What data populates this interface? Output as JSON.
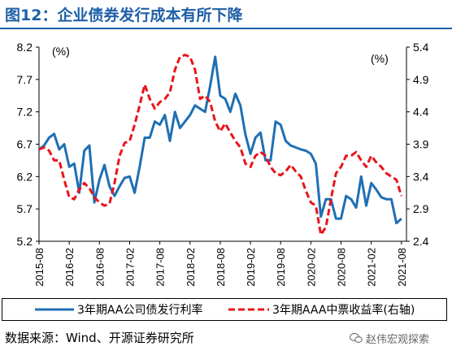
{
  "header": {
    "title": "图12：企业债券发行成本有所下降"
  },
  "footer": {
    "source": "数据来源：Wind、开源证券研究所",
    "watermark": "赵伟宏观探索"
  },
  "colors": {
    "title": "#1f5fa8",
    "series_left": "#1f6fb4",
    "series_right": "#e8141c"
  },
  "chart_data": {
    "type": "line",
    "title": "",
    "y_left": {
      "unit_label": "(%)",
      "range": [
        5.2,
        8.2
      ],
      "ticks": [
        "5.2",
        "5.7",
        "6.2",
        "6.7",
        "7.2",
        "7.7",
        "8.2"
      ]
    },
    "y_right": {
      "unit_label": "(%)",
      "range": [
        2.4,
        5.4
      ],
      "ticks": [
        "2.4",
        "2.9",
        "3.4",
        "3.9",
        "4.4",
        "4.9",
        "5.4"
      ]
    },
    "x_range": [
      "2015-08",
      "2021-09"
    ],
    "x_ticks": [
      "2015-08",
      "2016-02",
      "2016-08",
      "2017-02",
      "2017-08",
      "2018-02",
      "2018-08",
      "2019-02",
      "2019-08",
      "2020-02",
      "2020-08",
      "2021-02",
      "2021-08"
    ],
    "legend_position": "bottom",
    "grid": false,
    "series": [
      {
        "name": "3年期AA公司债发行利率",
        "axis": "left",
        "style": "solid",
        "points": [
          [
            "2015-08",
            6.62
          ],
          [
            "2015-09",
            6.68
          ],
          [
            "2015-10",
            6.8
          ],
          [
            "2015-11",
            6.86
          ],
          [
            "2015-12",
            6.62
          ],
          [
            "2016-01",
            6.7
          ],
          [
            "2016-02",
            6.35
          ],
          [
            "2016-03",
            6.4
          ],
          [
            "2016-04",
            5.95
          ],
          [
            "2016-05",
            6.6
          ],
          [
            "2016-06",
            6.68
          ],
          [
            "2016-07",
            5.8
          ],
          [
            "2016-08",
            6.15
          ],
          [
            "2016-09",
            6.38
          ],
          [
            "2016-10",
            6.05
          ],
          [
            "2016-11",
            5.9
          ],
          [
            "2016-12",
            6.05
          ],
          [
            "2017-01",
            6.18
          ],
          [
            "2017-02",
            6.2
          ],
          [
            "2017-03",
            5.95
          ],
          [
            "2017-04",
            6.35
          ],
          [
            "2017-05",
            6.8
          ],
          [
            "2017-06",
            6.8
          ],
          [
            "2017-07",
            7.05
          ],
          [
            "2017-08",
            7.0
          ],
          [
            "2017-09",
            7.15
          ],
          [
            "2017-10",
            6.75
          ],
          [
            "2017-11",
            7.2
          ],
          [
            "2017-12",
            6.95
          ],
          [
            "2018-01",
            7.05
          ],
          [
            "2018-02",
            7.15
          ],
          [
            "2018-03",
            7.3
          ],
          [
            "2018-04",
            7.25
          ],
          [
            "2018-05",
            7.2
          ],
          [
            "2018-06",
            7.6
          ],
          [
            "2018-07",
            8.05
          ],
          [
            "2018-08",
            7.45
          ],
          [
            "2018-09",
            7.4
          ],
          [
            "2018-10",
            7.2
          ],
          [
            "2018-11",
            7.48
          ],
          [
            "2018-12",
            7.3
          ],
          [
            "2019-01",
            6.85
          ],
          [
            "2019-02",
            6.55
          ],
          [
            "2019-03",
            6.8
          ],
          [
            "2019-04",
            6.88
          ],
          [
            "2019-05",
            6.45
          ],
          [
            "2019-06",
            6.45
          ],
          [
            "2019-07",
            7.05
          ],
          [
            "2019-08",
            7.0
          ],
          [
            "2019-09",
            6.75
          ],
          [
            "2019-10",
            6.68
          ],
          [
            "2019-11",
            6.65
          ],
          [
            "2019-12",
            6.62
          ],
          [
            "2020-01",
            6.6
          ],
          [
            "2020-02",
            6.55
          ],
          [
            "2020-03",
            6.4
          ],
          [
            "2020-04",
            5.58
          ],
          [
            "2020-05",
            5.85
          ],
          [
            "2020-06",
            5.85
          ],
          [
            "2020-07",
            5.55
          ],
          [
            "2020-08",
            5.55
          ],
          [
            "2020-09",
            5.9
          ],
          [
            "2020-10",
            5.85
          ],
          [
            "2020-11",
            5.72
          ],
          [
            "2020-12",
            6.2
          ],
          [
            "2021-01",
            5.75
          ],
          [
            "2021-02",
            6.1
          ],
          [
            "2021-03",
            6.0
          ],
          [
            "2021-04",
            5.88
          ],
          [
            "2021-05",
            5.85
          ],
          [
            "2021-06",
            5.85
          ],
          [
            "2021-07",
            5.48
          ],
          [
            "2021-08",
            5.55
          ]
        ]
      },
      {
        "name": "3年期AAA中票收益率(右轴)",
        "axis": "right",
        "style": "dashed",
        "points": [
          [
            "2015-08",
            3.82
          ],
          [
            "2015-09",
            3.85
          ],
          [
            "2015-10",
            3.8
          ],
          [
            "2015-11",
            3.65
          ],
          [
            "2015-12",
            3.65
          ],
          [
            "2016-01",
            3.35
          ],
          [
            "2016-02",
            3.08
          ],
          [
            "2016-03",
            3.05
          ],
          [
            "2016-04",
            3.2
          ],
          [
            "2016-05",
            3.3
          ],
          [
            "2016-06",
            3.22
          ],
          [
            "2016-07",
            3.08
          ],
          [
            "2016-08",
            3.0
          ],
          [
            "2016-09",
            2.95
          ],
          [
            "2016-10",
            2.98
          ],
          [
            "2016-11",
            3.3
          ],
          [
            "2016-12",
            3.72
          ],
          [
            "2017-01",
            3.92
          ],
          [
            "2017-02",
            3.95
          ],
          [
            "2017-03",
            4.2
          ],
          [
            "2017-04",
            4.5
          ],
          [
            "2017-05",
            4.82
          ],
          [
            "2017-06",
            4.6
          ],
          [
            "2017-07",
            4.45
          ],
          [
            "2017-08",
            4.55
          ],
          [
            "2017-09",
            4.6
          ],
          [
            "2017-10",
            4.7
          ],
          [
            "2017-11",
            5.05
          ],
          [
            "2017-12",
            5.25
          ],
          [
            "2018-01",
            5.28
          ],
          [
            "2018-02",
            5.25
          ],
          [
            "2018-03",
            5.05
          ],
          [
            "2018-04",
            4.6
          ],
          [
            "2018-05",
            4.65
          ],
          [
            "2018-06",
            4.55
          ],
          [
            "2018-07",
            4.25
          ],
          [
            "2018-08",
            4.1
          ],
          [
            "2018-09",
            4.22
          ],
          [
            "2018-10",
            4.08
          ],
          [
            "2018-11",
            3.95
          ],
          [
            "2018-12",
            3.85
          ],
          [
            "2019-01",
            3.6
          ],
          [
            "2019-02",
            3.55
          ],
          [
            "2019-03",
            3.72
          ],
          [
            "2019-04",
            3.78
          ],
          [
            "2019-05",
            3.72
          ],
          [
            "2019-06",
            3.55
          ],
          [
            "2019-07",
            3.45
          ],
          [
            "2019-08",
            3.42
          ],
          [
            "2019-09",
            3.48
          ],
          [
            "2019-10",
            3.58
          ],
          [
            "2019-11",
            3.48
          ],
          [
            "2019-12",
            3.4
          ],
          [
            "2020-01",
            3.18
          ],
          [
            "2020-02",
            3.0
          ],
          [
            "2020-03",
            2.95
          ],
          [
            "2020-04",
            2.5
          ],
          [
            "2020-05",
            2.62
          ],
          [
            "2020-06",
            3.05
          ],
          [
            "2020-07",
            3.45
          ],
          [
            "2020-08",
            3.55
          ],
          [
            "2020-09",
            3.72
          ],
          [
            "2020-10",
            3.72
          ],
          [
            "2020-11",
            3.78
          ],
          [
            "2020-12",
            3.65
          ],
          [
            "2021-01",
            3.55
          ],
          [
            "2021-02",
            3.72
          ],
          [
            "2021-03",
            3.62
          ],
          [
            "2021-04",
            3.55
          ],
          [
            "2021-05",
            3.45
          ],
          [
            "2021-06",
            3.4
          ],
          [
            "2021-07",
            3.35
          ],
          [
            "2021-08",
            3.1
          ]
        ]
      }
    ]
  }
}
